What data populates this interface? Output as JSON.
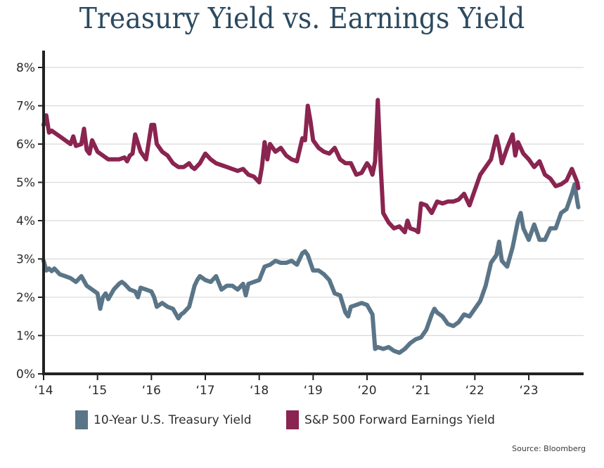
{
  "chart_data": {
    "type": "line",
    "title": "Treasury Yield vs. Earnings Yield",
    "xlabel": "",
    "ylabel": "",
    "ylim": [
      0,
      8
    ],
    "xlim": [
      2014,
      2024
    ],
    "grid": true,
    "y_ticks": [
      0,
      1,
      2,
      3,
      4,
      5,
      6,
      7,
      8
    ],
    "y_tick_labels": [
      "0%",
      "1%",
      "2%",
      "3%",
      "4%",
      "5%",
      "6%",
      "7%",
      "8%"
    ],
    "x_ticks": [
      2014,
      2015,
      2016,
      2017,
      2018,
      2019,
      2020,
      2021,
      2022,
      2023
    ],
    "x_tick_labels": [
      "‘14",
      "‘15",
      "‘16",
      "‘17",
      "‘18",
      "‘19",
      "‘20",
      "‘21",
      "‘22",
      "‘23"
    ],
    "legend_placement": "bottom",
    "series": [
      {
        "name": "10-Year U.S. Treasury Yield",
        "color": "#5a7587",
        "x": [
          2014.0,
          2014.05,
          2014.1,
          2014.15,
          2014.2,
          2014.3,
          2014.4,
          2014.5,
          2014.6,
          2014.7,
          2014.8,
          2014.9,
          2015.0,
          2015.05,
          2015.1,
          2015.15,
          2015.2,
          2015.3,
          2015.4,
          2015.45,
          2015.5,
          2015.6,
          2015.7,
          2015.75,
          2015.8,
          2015.9,
          2016.0,
          2016.05,
          2016.1,
          2016.2,
          2016.3,
          2016.4,
          2016.5,
          2016.55,
          2016.6,
          2016.7,
          2016.8,
          2016.85,
          2016.9,
          2017.0,
          2017.1,
          2017.2,
          2017.3,
          2017.4,
          2017.5,
          2017.6,
          2017.7,
          2017.75,
          2017.8,
          2017.9,
          2018.0,
          2018.1,
          2018.2,
          2018.3,
          2018.4,
          2018.5,
          2018.6,
          2018.7,
          2018.8,
          2018.85,
          2018.9,
          2019.0,
          2019.1,
          2019.2,
          2019.3,
          2019.4,
          2019.5,
          2019.6,
          2019.65,
          2019.7,
          2019.8,
          2019.9,
          2020.0,
          2020.1,
          2020.15,
          2020.2,
          2020.3,
          2020.4,
          2020.5,
          2020.6,
          2020.7,
          2020.8,
          2020.9,
          2021.0,
          2021.1,
          2021.2,
          2021.25,
          2021.3,
          2021.4,
          2021.5,
          2021.6,
          2021.7,
          2021.8,
          2021.9,
          2022.0,
          2022.1,
          2022.2,
          2022.3,
          2022.4,
          2022.45,
          2022.5,
          2022.6,
          2022.7,
          2022.8,
          2022.85,
          2022.9,
          2023.0,
          2023.1,
          2023.2,
          2023.3,
          2023.4,
          2023.5,
          2023.6,
          2023.7,
          2023.8,
          2023.85,
          2023.9,
          2024.0
        ],
        "values": [
          2.95,
          2.7,
          2.75,
          2.68,
          2.75,
          2.6,
          2.55,
          2.5,
          2.4,
          2.55,
          2.3,
          2.2,
          2.1,
          1.7,
          2.0,
          2.1,
          1.95,
          2.2,
          2.35,
          2.4,
          2.35,
          2.2,
          2.15,
          2.0,
          2.25,
          2.2,
          2.15,
          2.0,
          1.75,
          1.85,
          1.75,
          1.7,
          1.45,
          1.55,
          1.6,
          1.75,
          2.3,
          2.45,
          2.55,
          2.45,
          2.4,
          2.55,
          2.2,
          2.3,
          2.3,
          2.2,
          2.35,
          2.05,
          2.35,
          2.4,
          2.45,
          2.8,
          2.85,
          2.95,
          2.9,
          2.9,
          2.95,
          2.85,
          3.15,
          3.2,
          3.1,
          2.7,
          2.7,
          2.6,
          2.45,
          2.1,
          2.05,
          1.6,
          1.5,
          1.75,
          1.8,
          1.85,
          1.8,
          1.55,
          0.65,
          0.7,
          0.65,
          0.7,
          0.6,
          0.55,
          0.65,
          0.8,
          0.9,
          0.95,
          1.15,
          1.55,
          1.7,
          1.6,
          1.5,
          1.3,
          1.25,
          1.35,
          1.55,
          1.5,
          1.7,
          1.9,
          2.3,
          2.9,
          3.1,
          3.45,
          2.95,
          2.8,
          3.3,
          4.0,
          4.2,
          3.8,
          3.5,
          3.9,
          3.5,
          3.5,
          3.8,
          3.8,
          4.2,
          4.3,
          4.7,
          4.95,
          4.5,
          4.35
        ]
      },
      {
        "name": "S&P 500 Forward Earnings Yield",
        "color": "#8a2450",
        "x": [
          2014.0,
          2014.05,
          2014.1,
          2014.15,
          2014.2,
          2014.3,
          2014.4,
          2014.5,
          2014.55,
          2014.6,
          2014.7,
          2014.75,
          2014.8,
          2014.85,
          2014.9,
          2015.0,
          2015.1,
          2015.2,
          2015.3,
          2015.4,
          2015.5,
          2015.55,
          2015.6,
          2015.65,
          2015.7,
          2015.8,
          2015.9,
          2016.0,
          2016.05,
          2016.1,
          2016.2,
          2016.3,
          2016.4,
          2016.5,
          2016.6,
          2016.7,
          2016.75,
          2016.8,
          2016.9,
          2017.0,
          2017.1,
          2017.2,
          2017.3,
          2017.4,
          2017.5,
          2017.6,
          2017.7,
          2017.8,
          2017.9,
          2018.0,
          2018.05,
          2018.1,
          2018.15,
          2018.2,
          2018.3,
          2018.4,
          2018.5,
          2018.6,
          2018.7,
          2018.8,
          2018.85,
          2018.9,
          2018.95,
          2019.0,
          2019.1,
          2019.2,
          2019.3,
          2019.4,
          2019.5,
          2019.6,
          2019.7,
          2019.8,
          2019.9,
          2020.0,
          2020.05,
          2020.1,
          2020.15,
          2020.2,
          2020.25,
          2020.3,
          2020.4,
          2020.5,
          2020.6,
          2020.7,
          2020.75,
          2020.8,
          2020.9,
          2020.95,
          2021.0,
          2021.1,
          2021.2,
          2021.3,
          2021.4,
          2021.5,
          2021.6,
          2021.7,
          2021.8,
          2021.9,
          2022.0,
          2022.1,
          2022.2,
          2022.3,
          2022.4,
          2022.45,
          2022.5,
          2022.6,
          2022.7,
          2022.75,
          2022.8,
          2022.9,
          2023.0,
          2023.1,
          2023.2,
          2023.3,
          2023.4,
          2023.5,
          2023.6,
          2023.7,
          2023.75,
          2023.8,
          2023.9,
          2024.0
        ],
        "values": [
          6.5,
          6.75,
          6.3,
          6.35,
          6.3,
          6.2,
          6.1,
          6.0,
          6.2,
          5.95,
          6.0,
          6.4,
          5.85,
          5.75,
          6.1,
          5.8,
          5.7,
          5.6,
          5.6,
          5.6,
          5.65,
          5.55,
          5.7,
          5.75,
          6.25,
          5.8,
          5.6,
          6.5,
          6.5,
          6.0,
          5.8,
          5.7,
          5.5,
          5.4,
          5.4,
          5.5,
          5.4,
          5.35,
          5.5,
          5.75,
          5.6,
          5.5,
          5.45,
          5.4,
          5.35,
          5.3,
          5.35,
          5.2,
          5.15,
          5.0,
          5.4,
          6.05,
          5.6,
          6.0,
          5.8,
          5.9,
          5.7,
          5.6,
          5.55,
          6.15,
          6.1,
          7.0,
          6.6,
          6.1,
          5.9,
          5.8,
          5.75,
          5.9,
          5.6,
          5.5,
          5.5,
          5.2,
          5.25,
          5.5,
          5.4,
          5.2,
          5.55,
          7.15,
          5.5,
          4.2,
          3.95,
          3.8,
          3.85,
          3.7,
          4.0,
          3.8,
          3.75,
          3.7,
          4.45,
          4.4,
          4.2,
          4.5,
          4.45,
          4.5,
          4.5,
          4.55,
          4.7,
          4.4,
          4.8,
          5.2,
          5.4,
          5.6,
          6.2,
          5.9,
          5.5,
          5.9,
          6.25,
          5.7,
          6.05,
          5.75,
          5.6,
          5.4,
          5.55,
          5.2,
          5.1,
          4.9,
          4.95,
          5.05,
          5.2,
          5.35,
          5.0,
          4.85
        ]
      }
    ],
    "source": "Source: Bloomberg"
  },
  "legend": {
    "items": [
      {
        "label": "10-Year U.S. Treasury Yield",
        "color": "#5a7587"
      },
      {
        "label": "S&P 500 Forward Earnings Yield",
        "color": "#8a2450"
      }
    ]
  },
  "colors": {
    "title": "#2b4a60",
    "axis": "#222222",
    "grid": "#d9d9d9"
  }
}
